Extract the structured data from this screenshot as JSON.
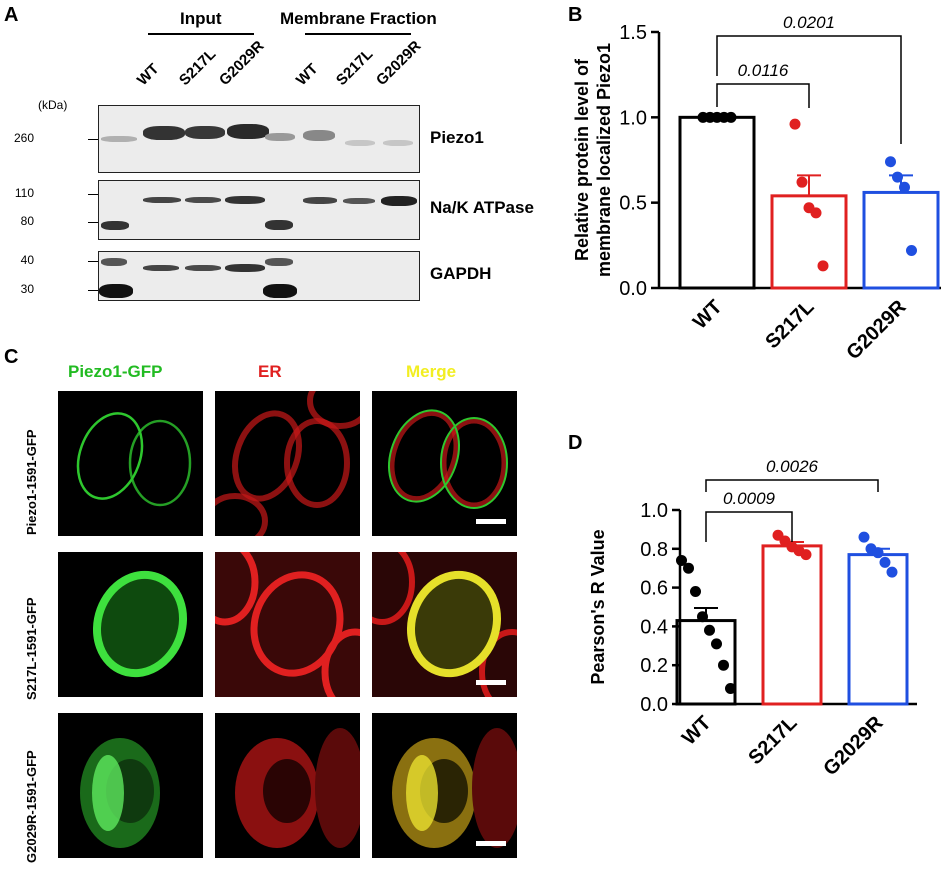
{
  "panels": {
    "a": "A",
    "b": "B",
    "c": "C",
    "d": "D"
  },
  "blot": {
    "group_input": "Input",
    "group_membrane": "Membrane Fraction",
    "lanes": [
      "WT",
      "S217L",
      "G2029R",
      "WT",
      "S217L",
      "G2029R"
    ],
    "kda_label": "(kDa)",
    "markers": {
      "piezo": [
        "260"
      ],
      "atpase": [
        "110",
        "80"
      ],
      "gapdh": [
        "40",
        "30"
      ]
    },
    "proteins": [
      "Piezo1",
      "Na/K ATPase",
      "GAPDH"
    ]
  },
  "microscopy": {
    "columns": [
      "Piezo1-GFP",
      "ER",
      "Merge"
    ],
    "column_colors": [
      "#22bb22",
      "#e02020",
      "#f2ee22"
    ],
    "rows": [
      "Piezo1-1591-GFP",
      "S217L-1591-GFP",
      "G2029R-1591-GFP"
    ]
  },
  "chart_data": [
    {
      "type": "bar",
      "panel": "B",
      "categories": [
        "WT",
        "S217L",
        "G2029R"
      ],
      "colors": [
        "#000000",
        "#e02020",
        "#1f4fe0"
      ],
      "values": [
        1.0,
        0.54,
        0.56
      ],
      "sem": [
        0.0,
        0.12,
        0.1
      ],
      "points": [
        [
          1.0,
          1.0,
          1.0,
          1.0,
          1.0
        ],
        [
          0.96,
          0.62,
          0.47,
          0.44,
          0.13
        ],
        [
          0.74,
          0.65,
          0.59,
          0.22
        ]
      ],
      "ylabel": "Relative protein level of membrane localized Piezo1",
      "ylim": [
        0.0,
        1.5
      ],
      "yticks": [
        "0.0",
        "0.5",
        "1.0",
        "1.5"
      ],
      "comparisons": [
        {
          "from": "WT",
          "to": "S217L",
          "p": "0.0116"
        },
        {
          "from": "WT",
          "to": "G2029R",
          "p": "0.0201"
        }
      ]
    },
    {
      "type": "bar",
      "panel": "D",
      "categories": [
        "WT",
        "S217L",
        "G2029R"
      ],
      "colors": [
        "#000000",
        "#e02020",
        "#1f4fe0"
      ],
      "values": [
        0.43,
        0.815,
        0.77
      ],
      "sem": [
        0.065,
        0.02,
        0.03
      ],
      "points": [
        [
          0.74,
          0.7,
          0.58,
          0.45,
          0.38,
          0.31,
          0.2,
          0.08
        ],
        [
          0.87,
          0.84,
          0.81,
          0.79,
          0.77
        ],
        [
          0.86,
          0.8,
          0.78,
          0.73,
          0.68
        ]
      ],
      "ylabel": "Pearson's R Value",
      "ylim": [
        0.0,
        1.0
      ],
      "yticks": [
        "0.0",
        "0.2",
        "0.4",
        "0.6",
        "0.8",
        "1.0"
      ],
      "comparisons": [
        {
          "from": "WT",
          "to": "S217L",
          "p": "0.0009"
        },
        {
          "from": "WT",
          "to": "G2029R",
          "p": "0.0026"
        }
      ]
    }
  ]
}
